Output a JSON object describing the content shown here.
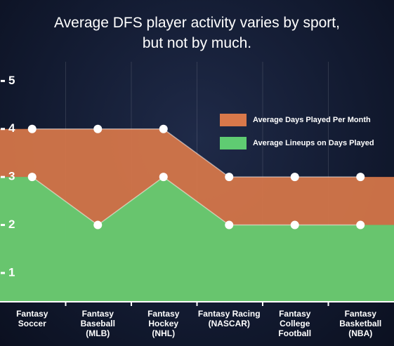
{
  "chart_data": {
    "type": "area",
    "title": "Average DFS player activity varies by sport,\nbut not by much.",
    "categories": [
      "Fantasy\nSoccer",
      "Fantasy\nBaseball\n(MLB)",
      "Fantasy\nHockey\n(NHL)",
      "Fantasy Racing\n(NASCAR)",
      "Fantasy\nCollege\nFootball",
      "Fantasy\nBasketball\n(NBA)"
    ],
    "series": [
      {
        "name": "Average Days Played Per Month",
        "color": "#d9784a",
        "values": [
          4,
          4,
          4,
          3,
          3,
          3
        ]
      },
      {
        "name": "Average Lineups on Days Played",
        "color": "#5fcc72",
        "values": [
          3,
          2,
          3,
          2,
          2,
          2
        ]
      }
    ],
    "ylim": [
      0.4,
      5.4
    ],
    "yticks": [
      1,
      2,
      3,
      4,
      5
    ],
    "grid": true,
    "legend": "upper right"
  }
}
